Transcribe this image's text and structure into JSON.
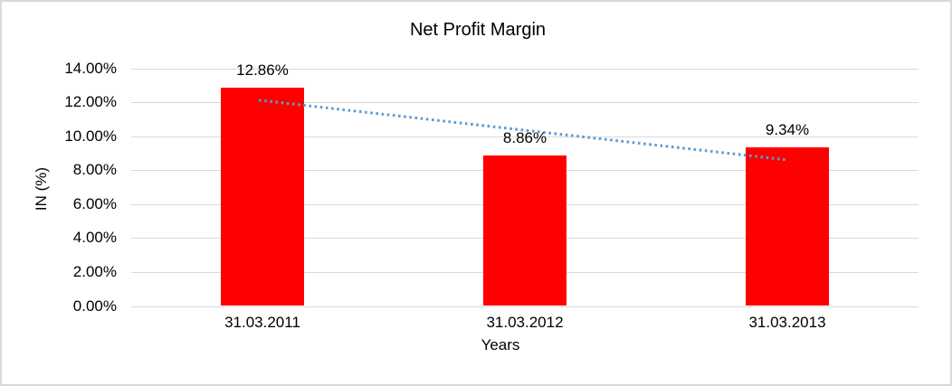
{
  "chart_data": {
    "type": "bar",
    "title": "Net Profit Margin",
    "xlabel": "Years",
    "ylabel": "IN (%)",
    "categories": [
      "31.03.2011",
      "31.03.2012",
      "31.03.2013"
    ],
    "values": [
      12.86,
      8.86,
      9.34
    ],
    "data_labels": [
      "12.86%",
      "8.86%",
      "9.34%"
    ],
    "ylim": [
      0,
      14
    ],
    "ytick_step": 2,
    "ytick_labels": [
      "0.00%",
      "2.00%",
      "4.00%",
      "6.00%",
      "8.00%",
      "10.00%",
      "12.00%",
      "14.00%"
    ],
    "grid": true,
    "legend": "none",
    "bar_color": "#ff0000",
    "gridline_color": "#d9d9d9",
    "trendline": {
      "type": "linear",
      "style": "dotted",
      "color": "#5b9bd5",
      "start_value": 12.12,
      "end_value": 8.6
    }
  }
}
